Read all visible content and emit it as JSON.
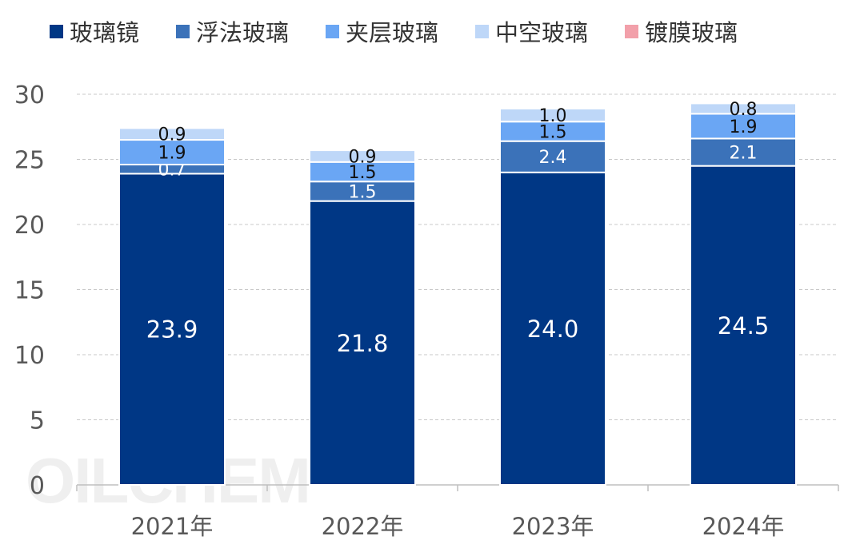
{
  "legend": [
    "玻璃镜",
    "浮法玻璃",
    "夹层玻璃",
    "中空玻璃",
    "镀膜玻璃"
  ],
  "colors": [
    "#003785",
    "#3b72b9",
    "#6aa6f4",
    "#bed7f8",
    "#f2a0aa"
  ],
  "watermark": "OILCHEM",
  "chart_data": {
    "type": "bar",
    "stacked": true,
    "categories": [
      "2021年",
      "2022年",
      "2023年",
      "2024年"
    ],
    "series": [
      {
        "name": "玻璃镜",
        "values": [
          23.9,
          21.8,
          24.0,
          24.5
        ]
      },
      {
        "name": "浮法玻璃",
        "values": [
          0.7,
          1.5,
          2.4,
          2.1
        ]
      },
      {
        "name": "夹层玻璃",
        "values": [
          1.9,
          1.5,
          1.5,
          1.9
        ]
      },
      {
        "name": "中空玻璃",
        "values": [
          0.9,
          0.9,
          1.0,
          0.8
        ]
      },
      {
        "name": "镀膜玻璃",
        "values": [
          0,
          0,
          0,
          0
        ]
      }
    ],
    "yticks": [
      "0",
      "5",
      "10",
      "15",
      "20",
      "25",
      "30"
    ],
    "ylim": [
      0,
      30
    ],
    "title": "",
    "xlabel": "",
    "ylabel": "",
    "grid": true,
    "legend_position": "top"
  }
}
